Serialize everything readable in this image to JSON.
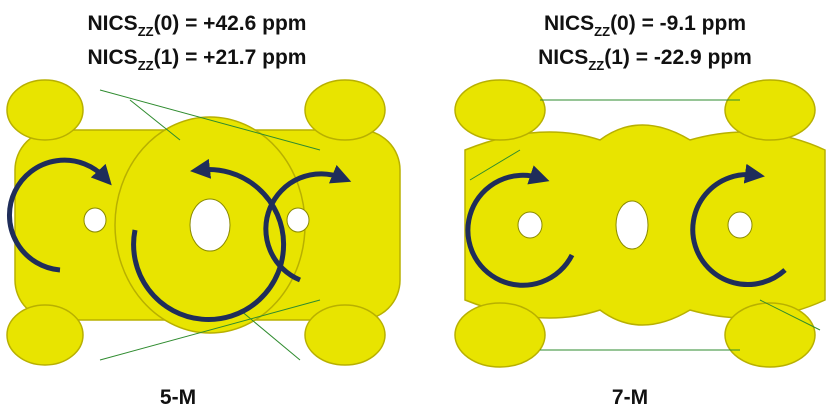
{
  "panels": [
    {
      "nics": [
        {
          "prefix": "NICS",
          "sub": "ZZ",
          "rest": "(0) = +42.6 ppm"
        },
        {
          "prefix": "NICS",
          "sub": "ZZ",
          "rest": "(1) = +21.7 ppm"
        }
      ],
      "label": "5-M"
    },
    {
      "nics": [
        {
          "prefix": "NICS",
          "sub": "ZZ",
          "rest": "(0) = -9.1 ppm"
        },
        {
          "prefix": "NICS",
          "sub": "ZZ",
          "rest": "(1) = -22.9 ppm"
        }
      ],
      "label": "7-M"
    }
  ]
}
